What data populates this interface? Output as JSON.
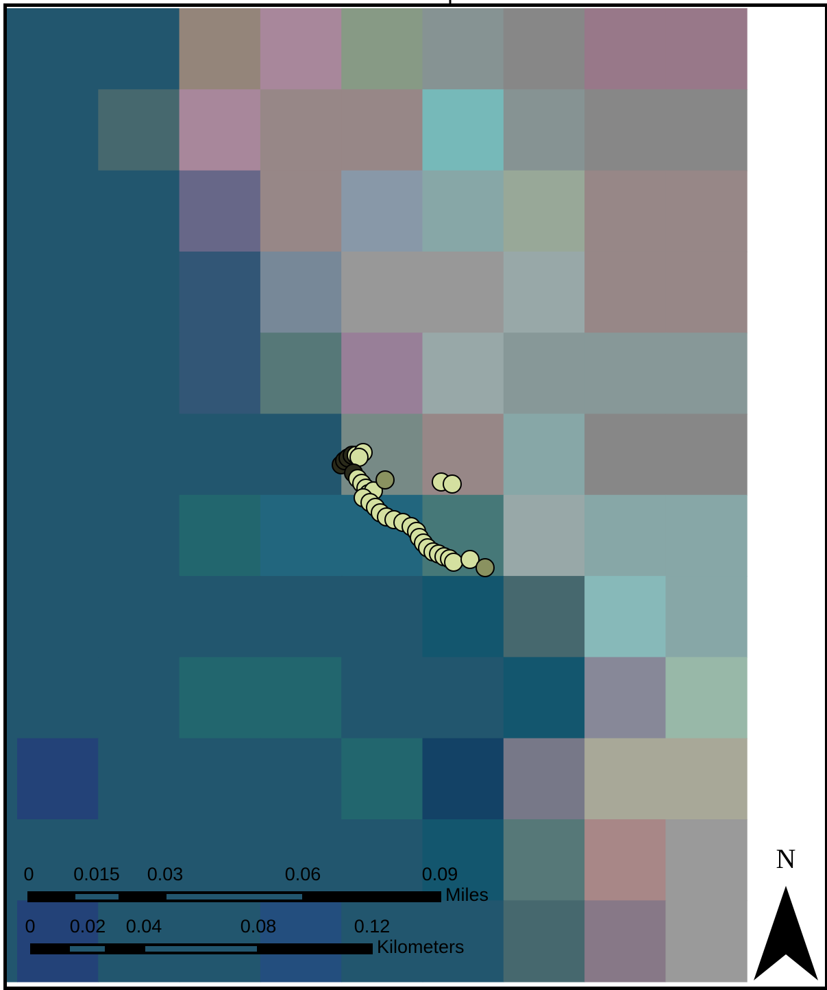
{
  "map": {
    "grid_rows": [
      [
        "#22786e",
        "#22566e",
        "#22566e",
        "#94857a",
        "#a8879b",
        "#879a85",
        "#869393",
        "#878787",
        "#987889"
      ],
      [
        "#234270",
        "#22566e",
        "#46686e",
        "#a8879b",
        "#978787",
        "#978787",
        "#76b9b9",
        "#869393",
        "#878787"
      ],
      [
        "#224266",
        "#22566e",
        "#22566e",
        "#676788",
        "#978787",
        "#8898a8",
        "#87a7a7",
        "#98a898",
        "#978787"
      ],
      [
        "#22566e",
        "#22566e",
        "#22566e",
        "#325676",
        "#778898",
        "#989898",
        "#989898",
        "#98a8a8",
        "#978787"
      ],
      [
        "#22566e",
        "#22566e",
        "#22566e",
        "#325676",
        "#567878",
        "#987f98",
        "#98a8a8",
        "#879898",
        "#879898"
      ],
      [
        "#22566e",
        "#22566e",
        "#22566e",
        "#22566e",
        "#22566e",
        "#778a86",
        "#978787",
        "#87a7a7",
        "#878787"
      ],
      [
        "#22566e",
        "#22566e",
        "#22566e",
        "#22666e",
        "#22667e",
        "#22667e",
        "#467878",
        "#98a8a8",
        "#87a7a7"
      ],
      [
        "#22566e",
        "#22566e",
        "#22566e",
        "#22566e",
        "#22566e",
        "#22566e",
        "#13566e",
        "#46686e",
        "#87b9b9"
      ],
      [
        "#22566e",
        "#22566e",
        "#22566e",
        "#22666e",
        "#22666e",
        "#22566e",
        "#22566e",
        "#13566e",
        "#878898"
      ],
      [
        "#22666e",
        "#234278",
        "#22566e",
        "#22566e",
        "#22566e",
        "#22666e",
        "#134266",
        "#777888",
        "#a8a898"
      ],
      [
        "#22566e",
        "#22566e",
        "#22566e",
        "#22566e",
        "#22566e",
        "#22566e",
        "#13566e",
        "#567878",
        "#a88787"
      ],
      [
        "#22566e",
        "#234278",
        "#22566e",
        "#22566e",
        "#234e7e",
        "#22566e",
        "#22566e",
        "#46686e",
        "#877887"
      ]
    ],
    "grid_last_col_extra": [
      "#987889",
      "#878787",
      "#978787",
      "#978787",
      "#879898",
      "#878787",
      "#87a7a7",
      "#87a7a7",
      "#98b8a8",
      "#a8a898",
      "#9a9a9a",
      "#9a9a9a"
    ],
    "point_fill_light": "#d4e0a0",
    "point_fill_dark": "#8a9260"
  },
  "scale_bar_miles": {
    "ticks": [
      "0",
      "0.015",
      "0.03",
      "0.06",
      "0.09"
    ],
    "unit": "Miles"
  },
  "scale_bar_km": {
    "ticks": [
      "0",
      "0.02",
      "0.04",
      "0.08",
      "0.12"
    ],
    "unit": "Kilometers"
  },
  "north_arrow": {
    "letter": "N",
    "icon": "north-arrow-icon"
  }
}
